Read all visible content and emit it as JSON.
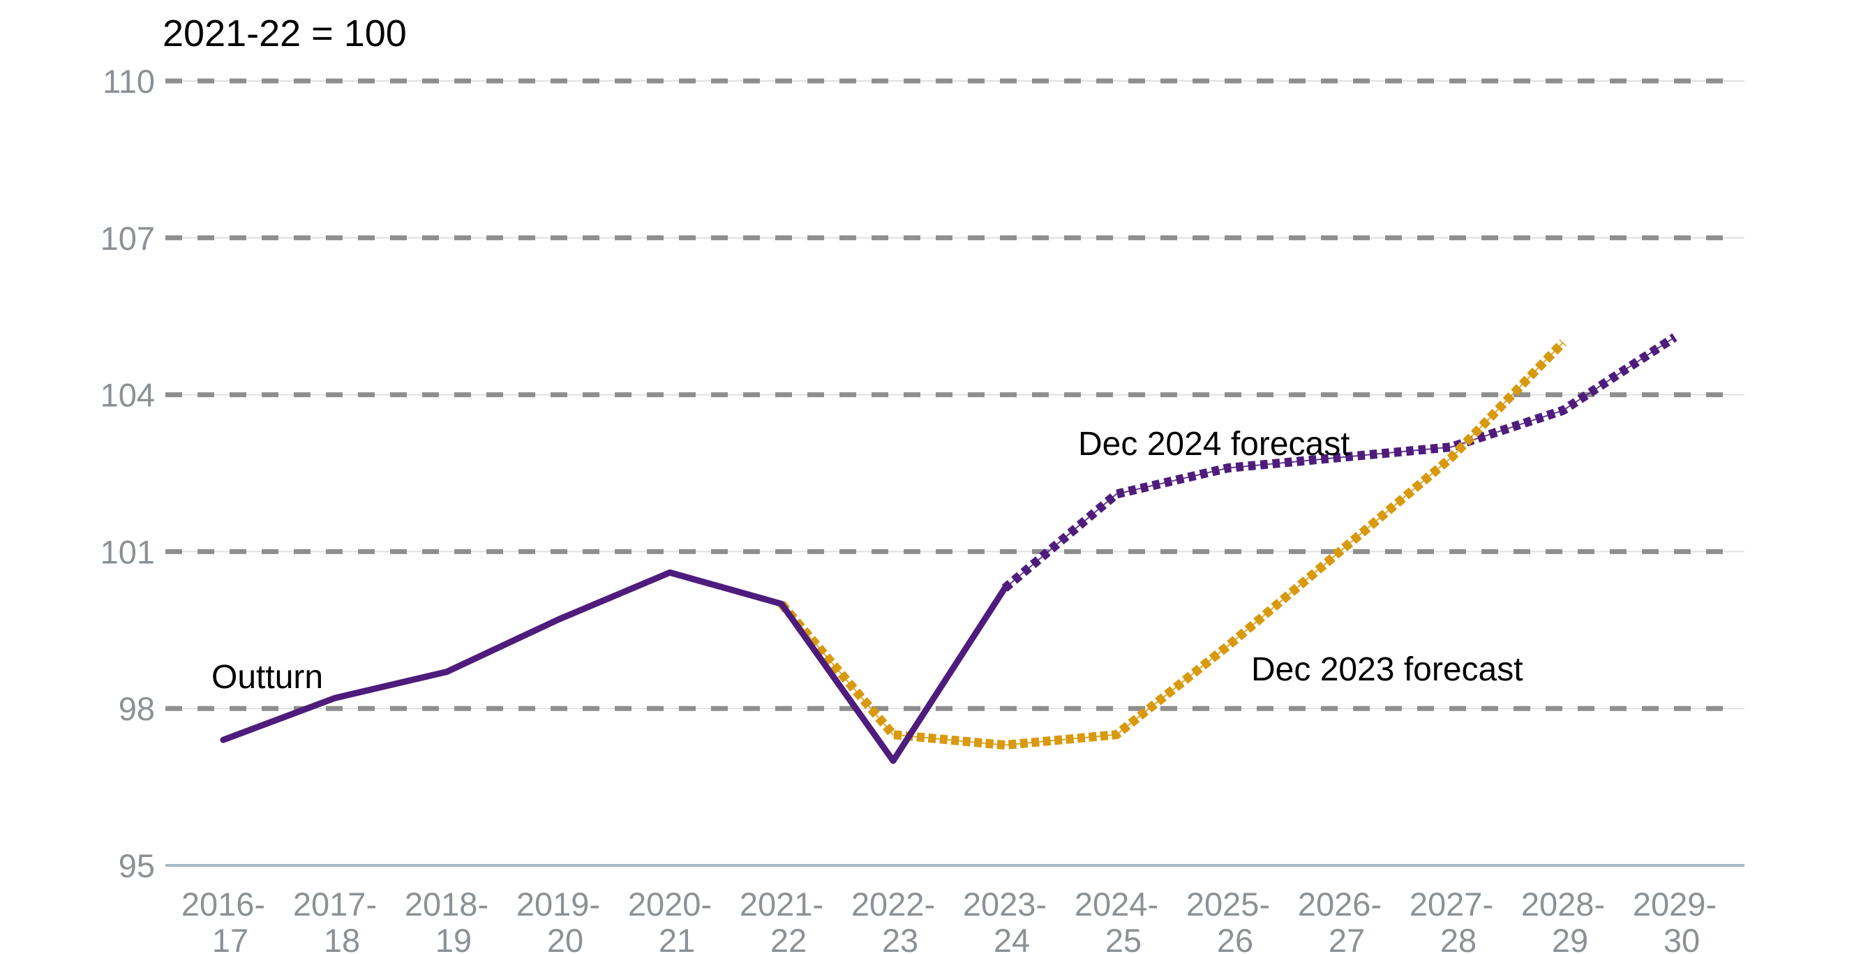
{
  "chart_data": {
    "type": "line",
    "title": "2021-22 = 100",
    "categories": [
      "2016-17",
      "2017-18",
      "2018-19",
      "2019-20",
      "2020-21",
      "2021-22",
      "2022-23",
      "2023-24",
      "2024-25",
      "2025-26",
      "2026-27",
      "2027-28",
      "2028-29",
      "2029-30"
    ],
    "y_axis": {
      "ticks": [
        110,
        107,
        104,
        101,
        98,
        95
      ],
      "min": 95,
      "max": 110,
      "gridlines": "dashed-horizontal"
    },
    "x_axis": {
      "label_style": "two-line fiscal years",
      "axis_line": true
    },
    "series": [
      {
        "name": "Outturn",
        "style": "solid",
        "color": "#4e1c7c",
        "values": [
          97.4,
          98.2,
          98.7,
          99.7,
          100.6,
          100,
          97,
          100.3,
          null,
          null,
          null,
          null,
          null,
          null
        ]
      },
      {
        "name": "Dec 2024 forecast",
        "style": "dotted",
        "color": "#4e1c7c",
        "values": [
          null,
          null,
          null,
          null,
          null,
          null,
          null,
          100.3,
          102.1,
          102.6,
          102.8,
          103,
          103.7,
          105.1
        ]
      },
      {
        "name": "Dec 2023 forecast",
        "style": "dotted",
        "color": "#d8990d",
        "values": [
          null,
          null,
          null,
          null,
          null,
          100,
          97.5,
          97.3,
          97.5,
          99.2,
          101,
          102.8,
          105,
          null
        ]
      }
    ],
    "annotations": [
      {
        "text": "Outturn",
        "x": 303,
        "y": 986
      },
      {
        "text": "Dec 2024 forecast",
        "x": 1545,
        "y": 652
      },
      {
        "text": "Dec 2023 forecast",
        "x": 1793,
        "y": 975
      }
    ],
    "legend": "inline-annotations",
    "colors": {
      "outturn": "#4e1c7c",
      "dec_2024_forecast": "#4e1c7c",
      "dec_2023_forecast": "#d8990d",
      "gridline": "#8e8e8e",
      "gridline_underlay": "#e0e0e0",
      "tick_label": "#8c9196",
      "axis_line": "#a6bac4",
      "text": "#000000",
      "background": "#ffffff"
    }
  }
}
